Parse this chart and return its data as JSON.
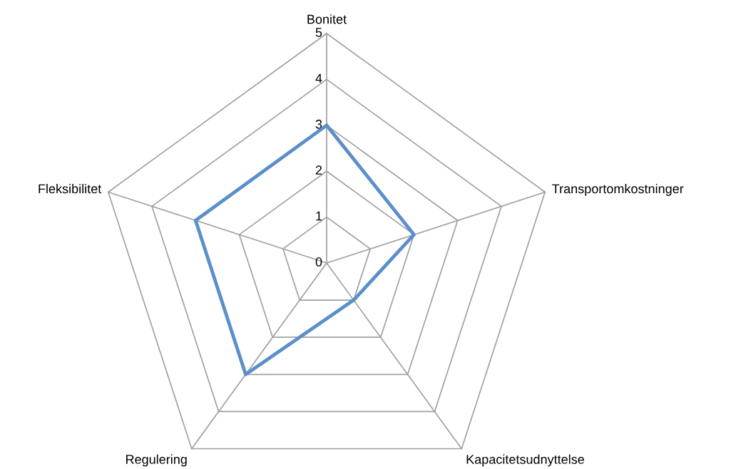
{
  "chart_data": {
    "type": "radar",
    "categories": [
      "Bonitet",
      "Transportomkostninger",
      "Kapacitetsudnyttelse",
      "Regulering",
      "Fleksibilitet"
    ],
    "series": [
      {
        "color": "#5b8fc9",
        "values": [
          3,
          2,
          1,
          3,
          3
        ]
      }
    ],
    "ylim": [
      0,
      5
    ],
    "yticks": [
      0,
      1,
      2,
      3,
      4,
      5
    ],
    "grid": true,
    "marker": "none",
    "line_style": "solid"
  }
}
